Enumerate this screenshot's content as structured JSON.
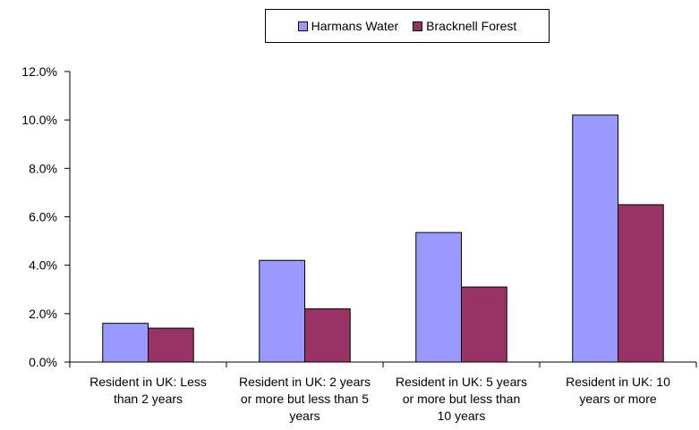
{
  "chart_data": {
    "type": "bar",
    "categories": [
      "Resident in UK: Less than 2 years",
      "Resident in UK: 2 years or more but less than 5 years",
      "Resident in UK: 5 years or more but less than 10 years",
      "Resident in UK: 10 years or more"
    ],
    "category_label_lines": [
      [
        "Resident in UK: Less",
        "than 2 years"
      ],
      [
        "Resident in UK: 2 years",
        "or more but less than 5",
        "years"
      ],
      [
        "Resident in UK: 5 years",
        "or more but less than",
        "10 years"
      ],
      [
        "Resident in UK: 10",
        "years or more"
      ]
    ],
    "series": [
      {
        "name": "Harmans Water",
        "color": "#9999ff",
        "values": [
          1.6,
          4.2,
          5.35,
          10.2
        ]
      },
      {
        "name": "Bracknell Forest",
        "color": "#993366",
        "values": [
          1.4,
          2.2,
          3.1,
          6.5
        ]
      }
    ],
    "y_ticks": [
      "0.0%",
      "2.0%",
      "4.0%",
      "6.0%",
      "8.0%",
      "10.0%",
      "12.0%"
    ],
    "ylim": [
      0,
      12
    ],
    "y_unit": "%",
    "grid": false,
    "legend_position": "top"
  }
}
